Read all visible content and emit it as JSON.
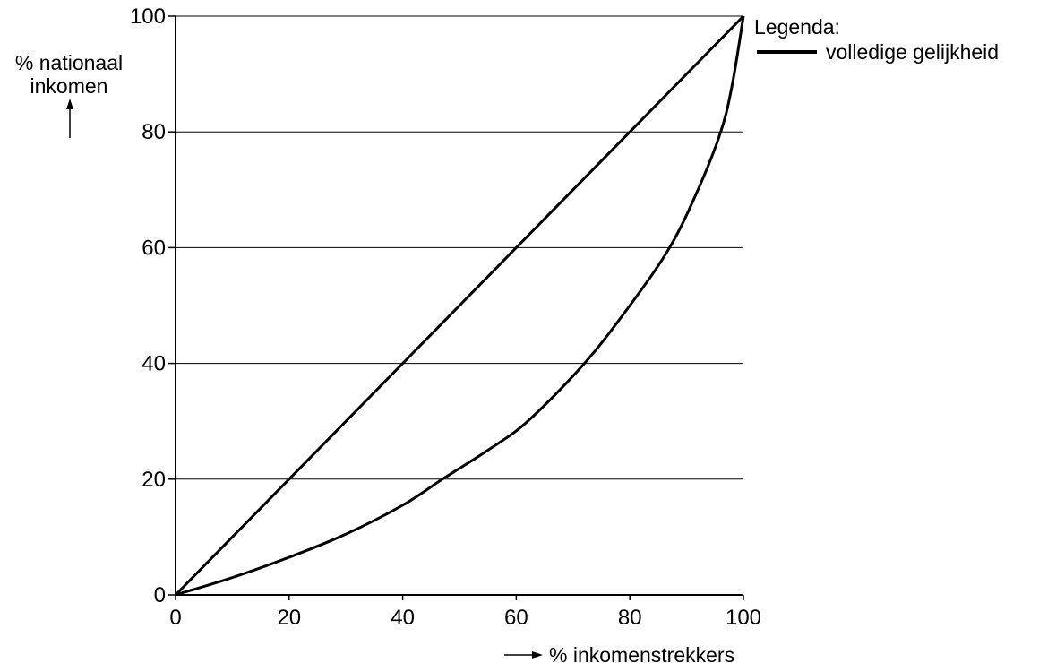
{
  "chart_data": {
    "type": "line",
    "title": "",
    "xlabel": "% inkomenstrekkers",
    "ylabel_line1": "% nationaal",
    "ylabel_line2": "inkomen",
    "xlim": [
      0,
      100
    ],
    "ylim": [
      0,
      100
    ],
    "x_ticks": [
      0,
      20,
      40,
      60,
      80,
      100
    ],
    "y_ticks": [
      0,
      20,
      40,
      60,
      80,
      100
    ],
    "horizontal_grid": true,
    "legend_title": "Legenda:",
    "legend_placement": "top-right",
    "series": [
      {
        "name": "volledige gelijkheid",
        "x": [
          0,
          100
        ],
        "y": [
          0,
          100
        ]
      },
      {
        "x": [
          0,
          10,
          20,
          30,
          40,
          47,
          55,
          62,
          72,
          80,
          87,
          92,
          96,
          98,
          100
        ],
        "y": [
          0,
          3,
          6.5,
          10.5,
          15.5,
          20,
          25,
          30,
          40,
          50,
          60,
          70,
          80,
          88,
          100
        ]
      }
    ]
  }
}
